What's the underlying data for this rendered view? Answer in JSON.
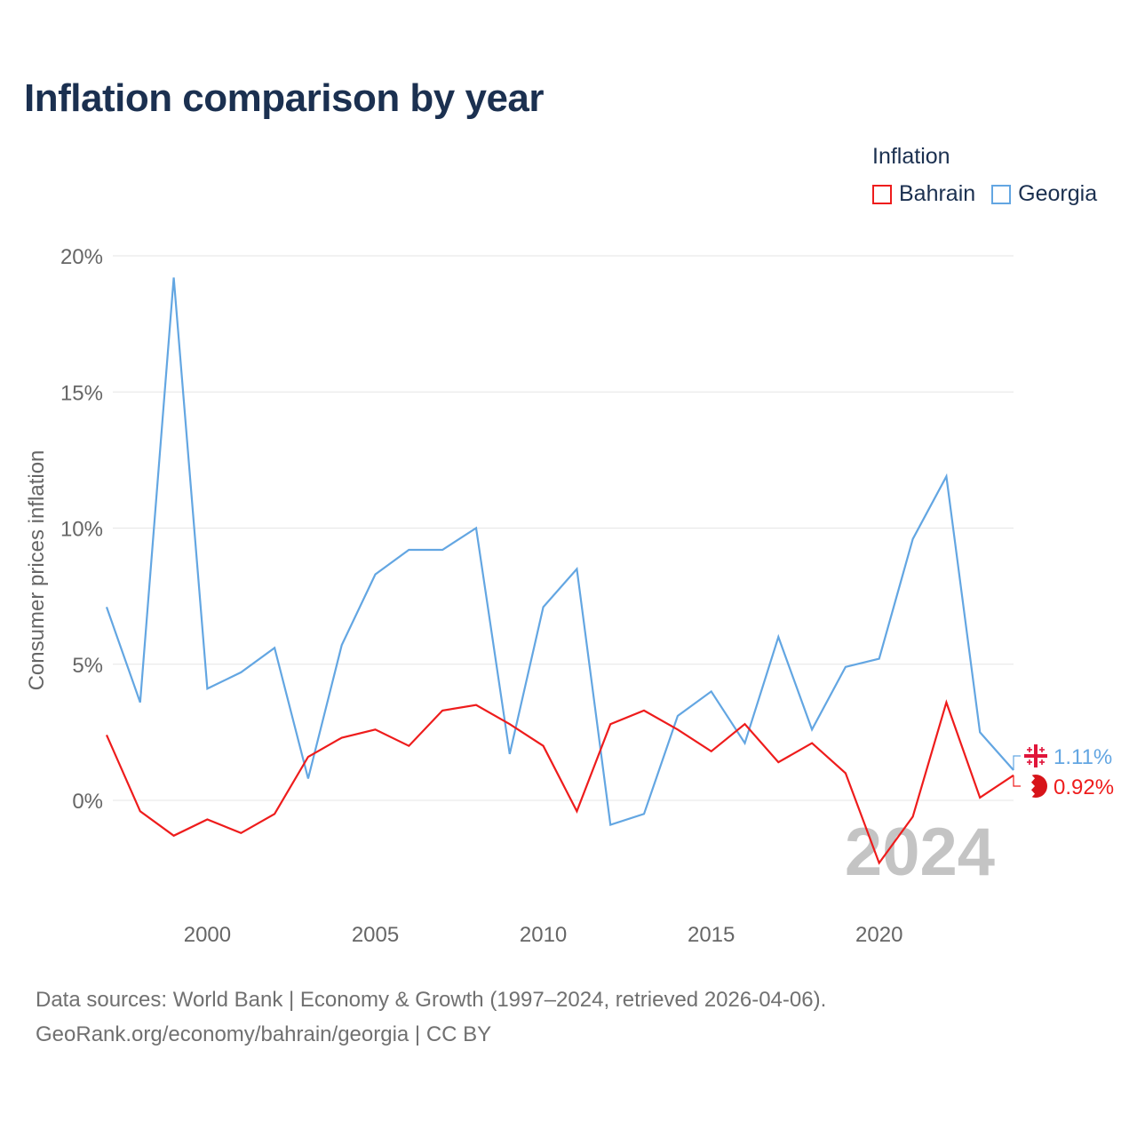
{
  "title": "Inflation comparison by year",
  "legend": {
    "title": "Inflation",
    "items": [
      {
        "name": "Bahrain",
        "color": "#ee1c1c"
      },
      {
        "name": "Georgia",
        "color": "#63a6e2"
      }
    ]
  },
  "footer": {
    "line1": "Data sources: World Bank | Economy & Growth (1997–2024, retrieved 2026-04-06).",
    "line2": "GeoRank.org/economy/bahrain/georgia | CC BY"
  },
  "chart_data": {
    "type": "line",
    "title": "Inflation comparison by year",
    "xlabel": "",
    "ylabel": "Consumer prices inflation",
    "xlim": [
      1997,
      2024
    ],
    "ylim": [
      -4,
      20
    ],
    "x_ticks": [
      2000,
      2005,
      2010,
      2015,
      2020
    ],
    "y_ticks": [
      0,
      5,
      10,
      15,
      20
    ],
    "y_tick_labels": [
      "0%",
      "5%",
      "10%",
      "15%",
      "20%"
    ],
    "grid": true,
    "legend_position": "top-right",
    "year_watermark": "2024",
    "x": [
      1997,
      1998,
      1999,
      2000,
      2001,
      2002,
      2003,
      2004,
      2005,
      2006,
      2007,
      2008,
      2009,
      2010,
      2011,
      2012,
      2013,
      2014,
      2015,
      2016,
      2017,
      2018,
      2019,
      2020,
      2021,
      2022,
      2023,
      2024
    ],
    "series": [
      {
        "name": "Georgia",
        "color": "#63a6e2",
        "end_label": "1.11%",
        "values": [
          7.1,
          3.6,
          19.2,
          4.1,
          4.7,
          5.6,
          0.8,
          5.7,
          8.3,
          9.2,
          9.2,
          10.0,
          1.7,
          7.1,
          8.5,
          -0.9,
          -0.5,
          3.1,
          4.0,
          2.1,
          6.0,
          2.6,
          4.9,
          5.2,
          9.6,
          11.9,
          2.5,
          1.11
        ]
      },
      {
        "name": "Bahrain",
        "color": "#ee1c1c",
        "end_label": "0.92%",
        "values": [
          2.4,
          -0.4,
          -1.3,
          -0.7,
          -1.2,
          -0.5,
          1.6,
          2.3,
          2.6,
          2.0,
          3.3,
          3.5,
          2.8,
          2.0,
          -0.4,
          2.8,
          3.3,
          2.6,
          1.8,
          2.8,
          1.4,
          2.1,
          1.0,
          -2.3,
          -0.6,
          3.6,
          0.1,
          0.92
        ]
      }
    ]
  }
}
